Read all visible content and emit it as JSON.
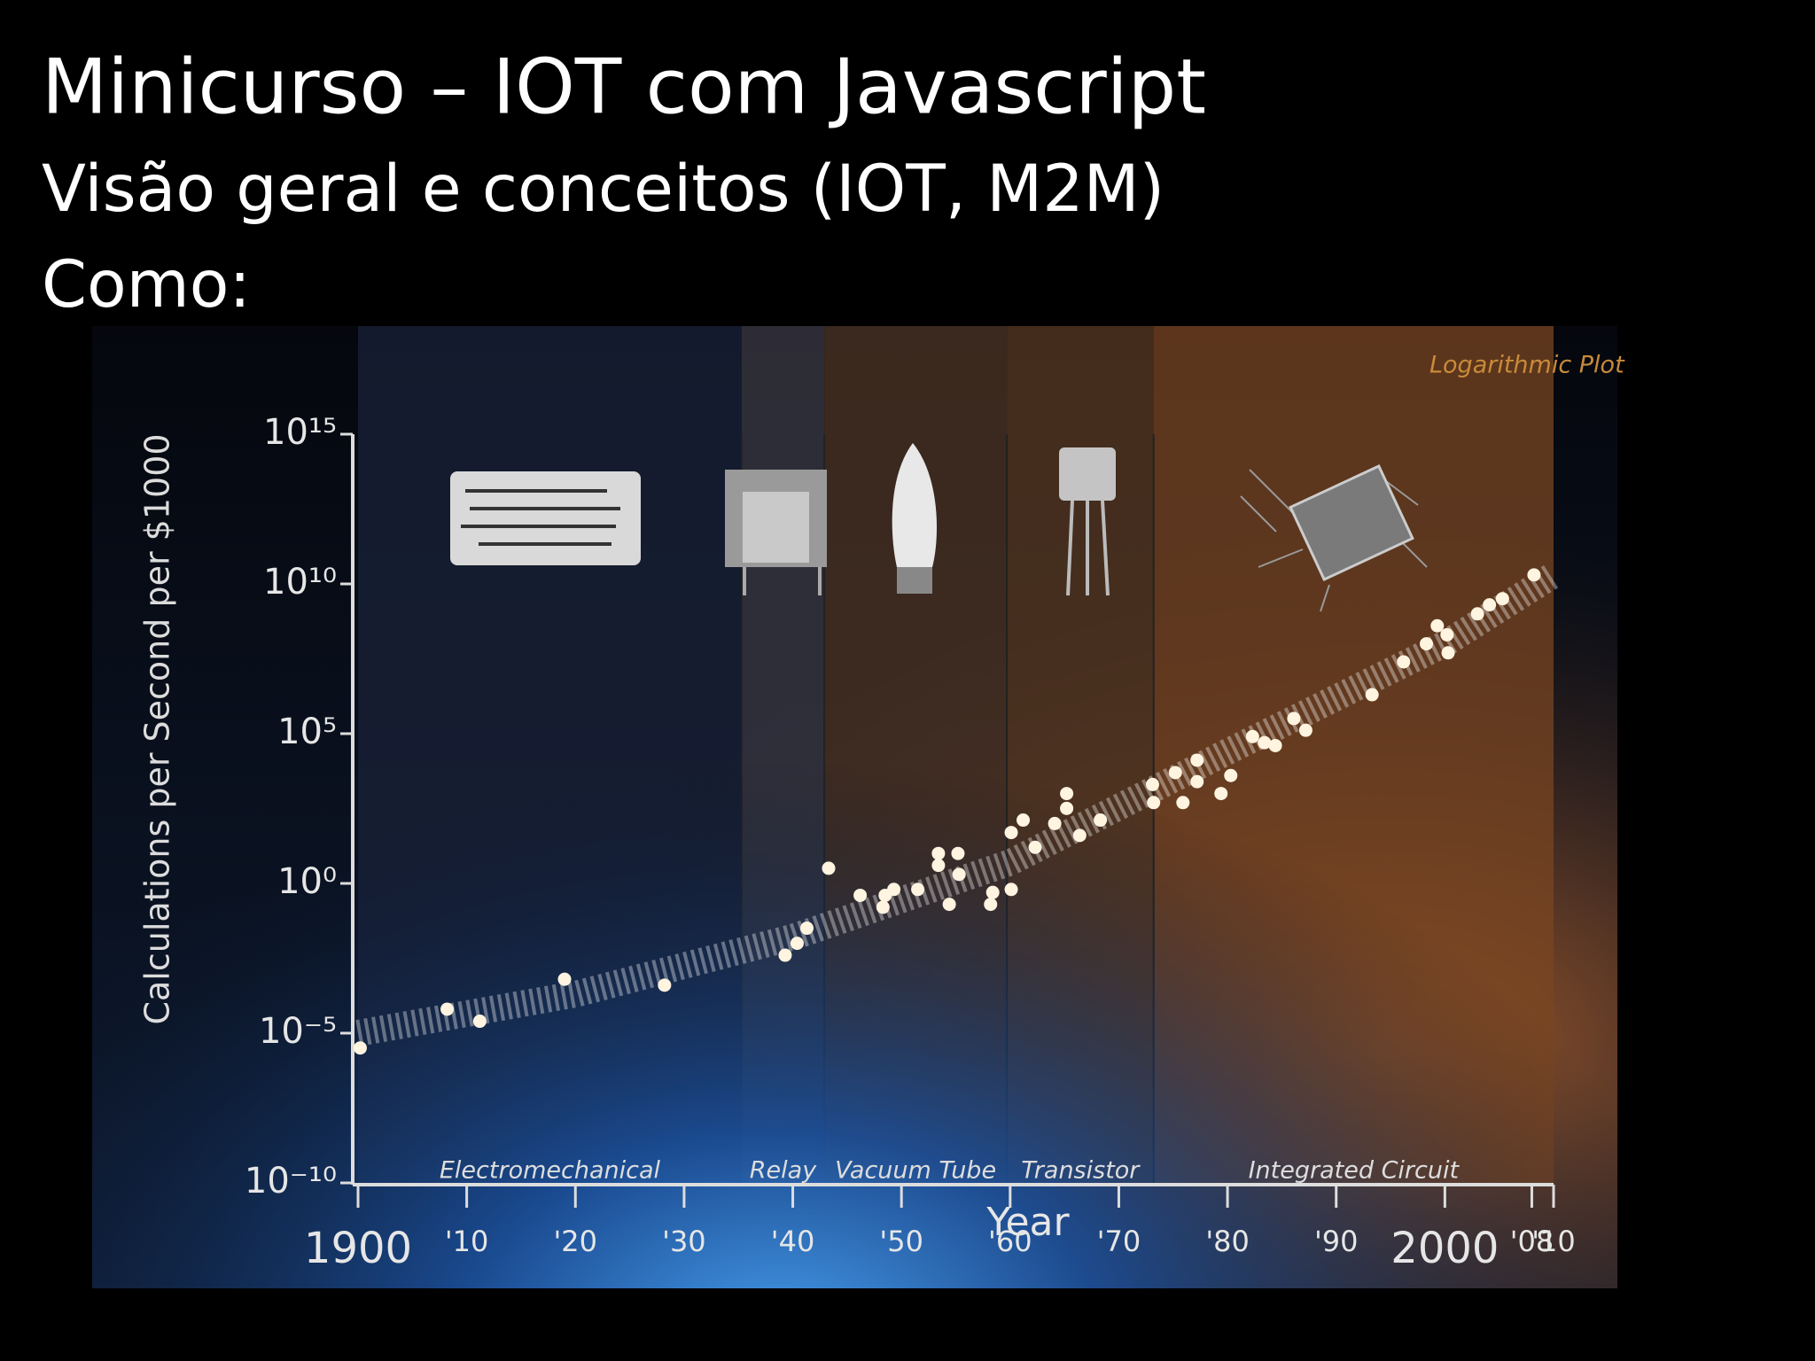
{
  "slide": {
    "title": "Minicurso – IOT com Javascript",
    "subtitle": "Visão geral e conceitos (IOT, M2M)",
    "line3": "Como:"
  },
  "chart_data": {
    "type": "scatter",
    "annotation": "Logarithmic Plot",
    "ylabel": "Calculations per Second per $1000",
    "xlabel": "Year",
    "log_y": true,
    "color": "#fff4e0",
    "xlim": [
      1900,
      2010
    ],
    "ylim": [
      1e-10,
      1000000000000000.0
    ],
    "xticks": [
      1900,
      {
        "value": 1910,
        "label": "'10"
      },
      {
        "value": 1920,
        "label": "'20"
      },
      {
        "value": 1930,
        "label": "'30"
      },
      {
        "value": 1940,
        "label": "'40"
      },
      {
        "value": 1950,
        "label": "'50"
      },
      {
        "value": 1960,
        "label": "'60"
      },
      {
        "value": 1970,
        "label": "'70"
      },
      {
        "value": 1980,
        "label": "'80"
      },
      {
        "value": 1990,
        "label": "'90"
      },
      2000,
      {
        "value": 2008,
        "label": "'08"
      },
      {
        "value": 2010,
        "label": "'10"
      }
    ],
    "yticks": [
      {
        "value": 1e-10,
        "label": "10⁻¹⁰"
      },
      {
        "value": 1e-05,
        "label": "10⁻⁵"
      },
      {
        "value": 1,
        "label": "10⁰"
      },
      {
        "value": 100000,
        "label": "10⁵"
      },
      {
        "value": 10000000000,
        "label": "10¹⁰"
      },
      {
        "value": 1000000000000000.0,
        "label": "10¹⁵"
      }
    ],
    "eras": [
      {
        "label": "Electromechanical",
        "start": 1900,
        "end": 1935.3,
        "color": "#1a2238"
      },
      {
        "label": "Relay",
        "start": 1935.3,
        "end": 1942.9,
        "color": "#3b3a44"
      },
      {
        "label": "Vacuum Tube",
        "start": 1942.9,
        "end": 1959.7,
        "color": "#4e3424"
      },
      {
        "label": "Transistor",
        "start": 1959.7,
        "end": 1973.2,
        "color": "#5a3a22"
      },
      {
        "label": "Integrated Circuit",
        "start": 1973.2,
        "end": 2010,
        "color": "#7a4621"
      }
    ],
    "trend": {
      "x": [
        1900,
        1920,
        1940,
        1960,
        1980,
        2000,
        2010
      ],
      "values": [
        1e-05,
        0.0002,
        0.016,
        5,
        25000,
        100000000,
        20000000000
      ]
    },
    "x": [
      1900.2,
      1908.2,
      1911.2,
      1919.0,
      1928.2,
      1939.3,
      1940.4,
      1941.3,
      1943.3,
      1946.2,
      1948.3,
      1948.5,
      1949.3,
      1951.5,
      1953.4,
      1953.4,
      1954.4,
      1955.2,
      1955.3,
      1958.2,
      1958.4,
      1960.1,
      1960.1,
      1961.2,
      1962.3,
      1964.1,
      1965.2,
      1965.2,
      1966.4,
      1968.3,
      1973.1,
      1973.2,
      1975.2,
      1975.9,
      1977.2,
      1977.2,
      1979.4,
      1980.3,
      1982.3,
      1983.4,
      1984.4,
      1986.1,
      1987.2,
      1993.3,
      1996.2,
      1998.3,
      1999.3,
      2000.2,
      2000.3,
      2003.0,
      2004.1,
      2005.3,
      2008.2
    ],
    "values": [
      3.2e-06,
      6.3e-05,
      2.5e-05,
      0.00063,
      0.0004,
      0.004,
      0.01,
      0.032,
      3.2,
      0.4,
      0.16,
      0.4,
      0.63,
      0.63,
      10,
      4,
      0.2,
      10,
      2,
      0.2,
      0.5,
      0.63,
      50,
      130,
      16,
      100,
      1000,
      320,
      40,
      130,
      2000,
      500,
      5000,
      500,
      13000,
      2500,
      1000,
      4000,
      80000,
      50000,
      40000,
      320000,
      130000,
      2000000,
      25000000,
      100000000,
      400000000,
      200000000,
      50000000,
      1000000000,
      2000000000,
      3200000000,
      20000000000
    ]
  }
}
